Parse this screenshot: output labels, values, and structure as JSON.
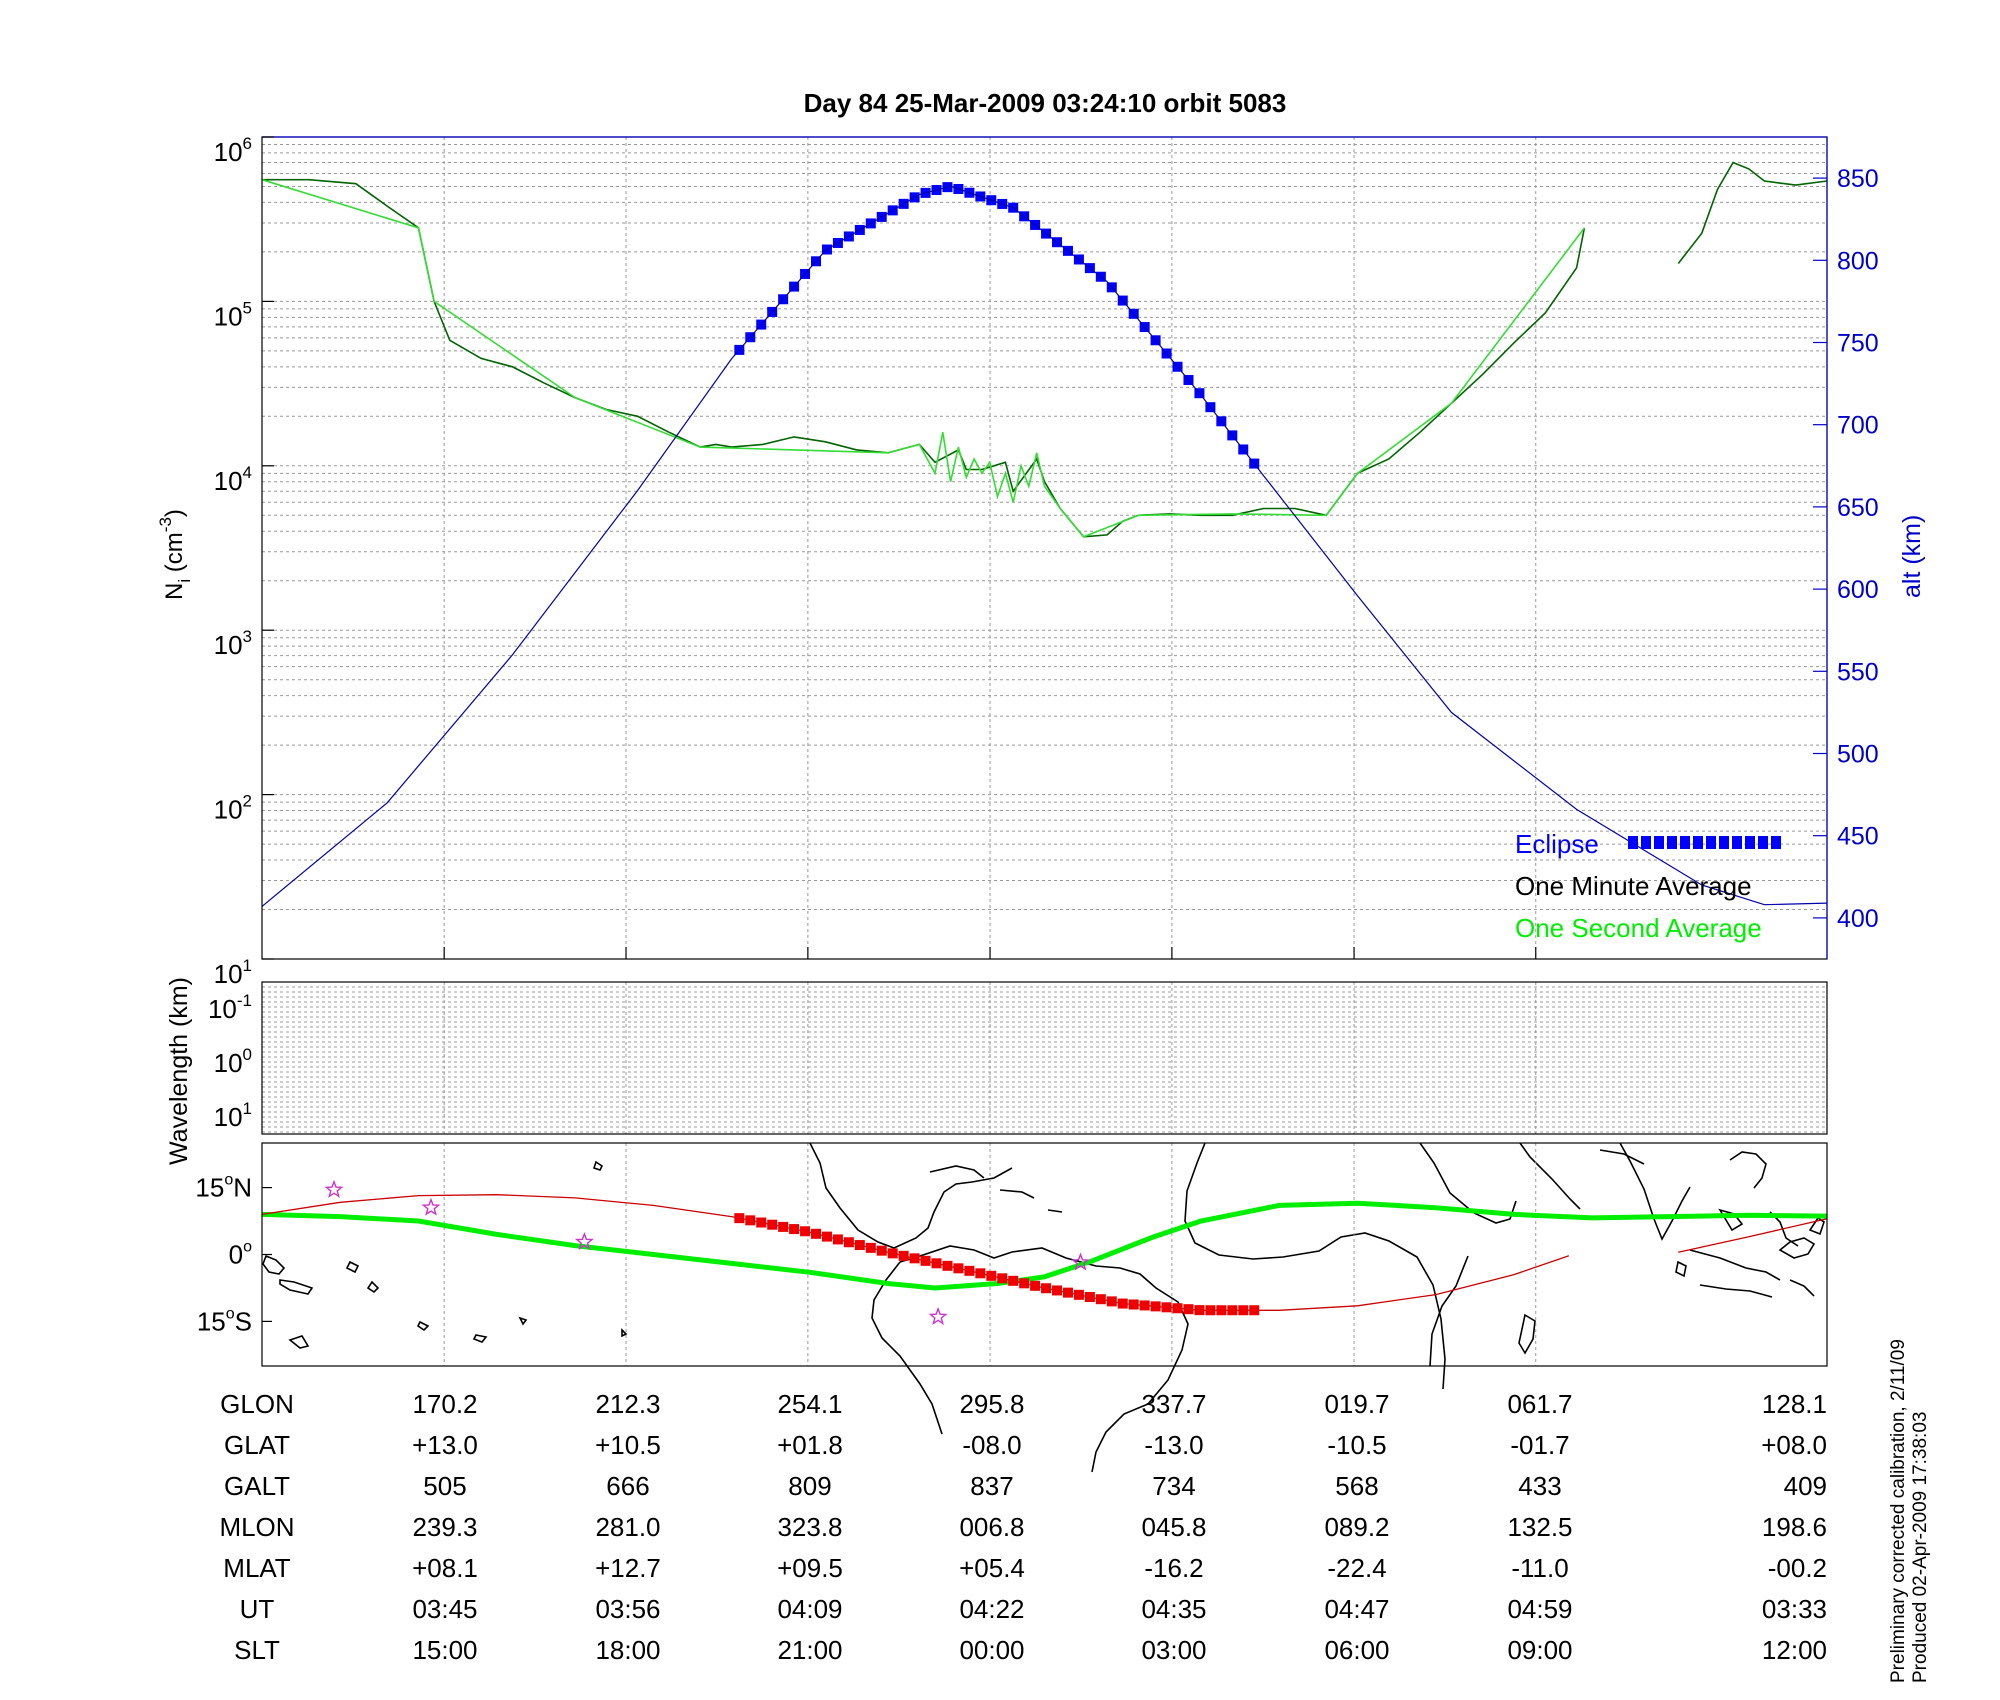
{
  "chart_data": [
    {
      "type": "line",
      "title": "Day 84  25-Mar-2009 03:24:10   orbit 5083",
      "ylabel_main": "N",
      "ylabel_sub": "i",
      "ylabel_unit_pre": " (cm",
      "ylabel_unit_sup": "-3",
      "ylabel_unit_post": ")",
      "y2label": "alt (km)",
      "yscale": "log",
      "ylim": [
        10,
        1000000
      ],
      "y_ticks": [
        {
          "base": "10",
          "exp": "1",
          "value": 10
        },
        {
          "base": "10",
          "exp": "2",
          "value": 100
        },
        {
          "base": "10",
          "exp": "3",
          "value": 1000
        },
        {
          "base": "10",
          "exp": "4",
          "value": 10000
        },
        {
          "base": "10",
          "exp": "5",
          "value": 100000
        },
        {
          "base": "10",
          "exp": "6",
          "value": 1000000
        }
      ],
      "y2lim": [
        375,
        875
      ],
      "y2_ticks": [
        "400",
        "450",
        "500",
        "550",
        "600",
        "650",
        "700",
        "750",
        "800",
        "850"
      ],
      "xlim": [
        0,
        100
      ],
      "legend": [
        {
          "label": "Eclipse",
          "color": "#0000ff"
        },
        {
          "label": "One Minute Average",
          "color": "#000000"
        },
        {
          "label": "One Second Average",
          "color": "#00ee00"
        }
      ],
      "legend_position": "bottom-right",
      "series": [
        {
          "name": "Ni (One Minute Average)",
          "color": "#006400",
          "x": [
            0,
            3,
            6,
            8,
            10,
            11,
            12,
            14,
            16,
            18,
            20,
            22,
            24,
            26,
            28,
            29,
            30,
            32,
            34,
            36,
            38,
            40,
            42,
            43,
            44.5,
            45,
            46,
            47.5,
            48,
            49.5,
            50,
            51,
            52.5,
            54,
            55,
            56,
            58,
            60,
            62,
            64,
            66,
            68,
            70,
            72,
            74,
            76,
            78,
            80,
            82,
            84,
            84.5
          ],
          "values": [
            550000,
            550000,
            520000,
            380000,
            280000,
            100000,
            58000,
            45000,
            40000,
            32000,
            26000,
            22000,
            20000,
            16000,
            13000,
            13500,
            13000,
            13500,
            15000,
            14000,
            12500,
            12000,
            13500,
            10500,
            12500,
            9500,
            9500,
            10500,
            7000,
            11000,
            8000,
            5500,
            3700,
            3800,
            4600,
            5000,
            5100,
            5000,
            5000,
            5500,
            5500,
            5000,
            9000,
            11000,
            16000,
            24000,
            36000,
            56000,
            85000,
            160000,
            280000
          ]
        },
        {
          "name": "Ni (One Second Average)",
          "color": "#33dd33",
          "x": [
            0,
            10,
            11,
            20,
            28,
            40,
            42,
            43,
            43.5,
            44,
            44.5,
            45,
            45.5,
            46,
            46.5,
            47,
            47.5,
            48,
            48.5,
            49,
            49.5,
            50,
            51,
            52.5,
            56,
            62,
            68,
            70,
            76,
            84.5
          ],
          "values": [
            550000,
            280000,
            100000,
            26000,
            13000,
            12000,
            13500,
            9000,
            16000,
            8000,
            13000,
            8500,
            11000,
            9000,
            10500,
            6500,
            9000,
            6000,
            10000,
            7500,
            12000,
            7500,
            5500,
            3700,
            5000,
            5100,
            5000,
            9000,
            24000,
            280000
          ]
        },
        {
          "name": "Ni (late segment)",
          "color": "#006400",
          "x": [
            90.5,
            92,
            93,
            94,
            95,
            96,
            98,
            100
          ],
          "values": [
            170000,
            260000,
            480000,
            700000,
            640000,
            540000,
            510000,
            540000
          ],
          "marker": "none"
        },
        {
          "name": "alt",
          "color": "#0000aa",
          "axis": "right",
          "x": [
            0,
            8,
            16,
            24,
            30,
            36,
            42,
            44,
            48,
            54,
            60,
            64,
            70,
            76,
            84,
            92,
            96,
            100
          ],
          "values": [
            407,
            470,
            560,
            660,
            740,
            806,
            840,
            845,
            832,
            787,
            718,
            669,
            596,
            525,
            466,
            420,
            408,
            409
          ]
        },
        {
          "name": "Eclipse",
          "color": "#0000ff",
          "axis": "right",
          "x_range": [
            30.5,
            63.5
          ]
        }
      ]
    },
    {
      "type": "heatmap",
      "ylabel": "Wavelength (km)",
      "y_ticks": [
        {
          "base": "10",
          "exp": "-1"
        },
        {
          "base": "10",
          "exp": "0"
        },
        {
          "base": "10",
          "exp": "1"
        }
      ],
      "values": []
    },
    {
      "type": "line",
      "subtype": "map",
      "y_ticks": [
        {
          "num": "15",
          "unit": "N",
          "lat": 15
        },
        {
          "num": "0",
          "unit": "",
          "lat": 0
        },
        {
          "num": "15",
          "unit": "S",
          "lat": -15
        }
      ],
      "ylim": [
        -25,
        25
      ],
      "series": [
        {
          "name": "magnetic equator",
          "color": "#00ee00",
          "x": [
            0,
            5,
            10,
            15,
            20,
            25,
            30,
            35,
            40,
            43,
            47,
            50,
            53,
            57,
            60,
            65,
            70,
            75,
            80,
            85,
            90,
            95,
            100
          ],
          "lat": [
            9,
            8.5,
            7.5,
            4.5,
            2,
            0,
            -2,
            -4,
            -6.5,
            -7.5,
            -6.5,
            -5,
            -1.5,
            4,
            7.5,
            11,
            11.5,
            10.5,
            9,
            8.2,
            8.5,
            8.8,
            8.6
          ]
        },
        {
          "name": "satellite track",
          "color": "#cc0000",
          "x": [
            0,
            5,
            10,
            15,
            20,
            25,
            30,
            35,
            40,
            45,
            50,
            55,
            60,
            65,
            70,
            75,
            80,
            83.5
          ],
          "lat": [
            9,
            11.7,
            13.2,
            13.4,
            12.7,
            11,
            8.5,
            5,
            0.5,
            -3.5,
            -7.5,
            -11,
            -12.5,
            -12.5,
            -11.5,
            -9,
            -4.5,
            -0.3
          ]
        },
        {
          "name": "satellite track (wrapped)",
          "color": "#cc0000",
          "x": [
            90.5,
            95,
            100
          ],
          "lat": [
            0.5,
            4,
            8
          ]
        },
        {
          "name": "Eclipse",
          "color": "#ee0000",
          "x_range": [
            30.5,
            63.5
          ]
        }
      ],
      "stars": [
        {
          "x": 4.6,
          "lat": 14.5
        },
        {
          "x": 10.8,
          "lat": 10.5
        },
        {
          "x": 20.6,
          "lat": 2.8
        },
        {
          "x": 43.2,
          "lat": -14
        },
        {
          "x": 52.3,
          "lat": -1.8
        }
      ]
    }
  ],
  "table": {
    "row_labels": [
      "GLON",
      "GLAT",
      "GALT",
      "MLON",
      "MLAT",
      "UT",
      "SLT"
    ],
    "columns": [
      {
        "GLON": "170.2",
        "GLAT": "+13.0",
        "GALT": "505",
        "MLON": "239.3",
        "MLAT": "+08.1",
        "UT": "03:45",
        "SLT": "15:00"
      },
      {
        "GLON": "212.3",
        "GLAT": "+10.5",
        "GALT": "666",
        "MLON": "281.0",
        "MLAT": "+12.7",
        "UT": "03:56",
        "SLT": "18:00"
      },
      {
        "GLON": "254.1",
        "GLAT": "+01.8",
        "GALT": "809",
        "MLON": "323.8",
        "MLAT": "+09.5",
        "UT": "04:09",
        "SLT": "21:00"
      },
      {
        "GLON": "295.8",
        "GLAT": "-08.0",
        "GALT": "837",
        "MLON": "006.8",
        "MLAT": "+05.4",
        "UT": "04:22",
        "SLT": "00:00"
      },
      {
        "GLON": "337.7",
        "GLAT": "-13.0",
        "GALT": "734",
        "MLON": "045.8",
        "MLAT": "-16.2",
        "UT": "04:35",
        "SLT": "03:00"
      },
      {
        "GLON": "019.7",
        "GLAT": "-10.5",
        "GALT": "568",
        "MLON": "089.2",
        "MLAT": "-22.4",
        "UT": "04:47",
        "SLT": "06:00"
      },
      {
        "GLON": "061.7",
        "GLAT": "-01.7",
        "GALT": "433",
        "MLON": "132.5",
        "MLAT": "-11.0",
        "UT": "04:59",
        "SLT": "09:00"
      },
      {
        "GLON": "128.1",
        "GLAT": "+08.0",
        "GALT": "409",
        "MLON": "198.6",
        "MLAT": "-00.2",
        "UT": "03:33",
        "SLT": "12:00"
      }
    ]
  },
  "footer": {
    "line1": "Preliminary corrected calibration, 2/11/09",
    "line2": "Produced 02-Apr-2009 17:38:03"
  },
  "colors": {
    "alt_axis": "#0000cc",
    "grid": "#999999"
  }
}
